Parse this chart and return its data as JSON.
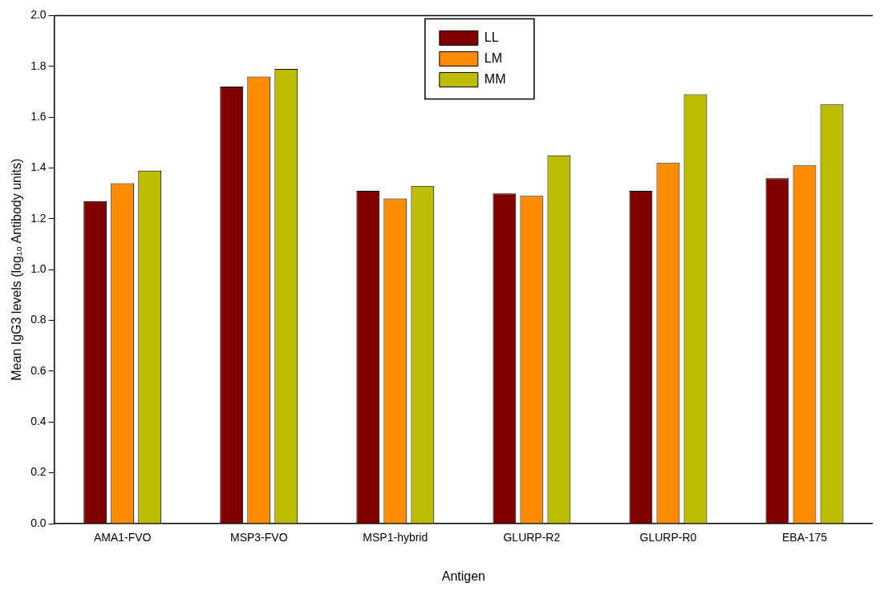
{
  "chart_data": {
    "type": "bar",
    "xlabel": "Antigen",
    "ylabel": "Mean IgG3 levels (log₁₀ Antibody units)",
    "categories": [
      "AMA1-FVO",
      "MSP3-FVO",
      "MSP1-hybrid",
      "GLURP-R2",
      "GLURP-R0",
      "EBA-175"
    ],
    "series": [
      {
        "name": "LL",
        "color": "#7f0000",
        "values": [
          1.27,
          1.72,
          1.31,
          1.3,
          1.31,
          1.36
        ]
      },
      {
        "name": "LM",
        "color": "#ff8c00",
        "values": [
          1.34,
          1.76,
          1.28,
          1.29,
          1.42,
          1.41
        ]
      },
      {
        "name": "MM",
        "color": "#bdbd00",
        "values": [
          1.39,
          1.79,
          1.33,
          1.45,
          1.69,
          1.65
        ]
      }
    ],
    "ylim": [
      0,
      2
    ],
    "yticks": [
      {
        "value": 0,
        "label": "0.0"
      },
      0.2,
      0.4,
      0.6,
      0.8,
      {
        "value": 1,
        "label": "1.0"
      },
      1.2,
      1.4,
      1.6,
      1.8,
      {
        "value": 2,
        "label": "2.0"
      }
    ],
    "grid": false,
    "legend": "top"
  }
}
